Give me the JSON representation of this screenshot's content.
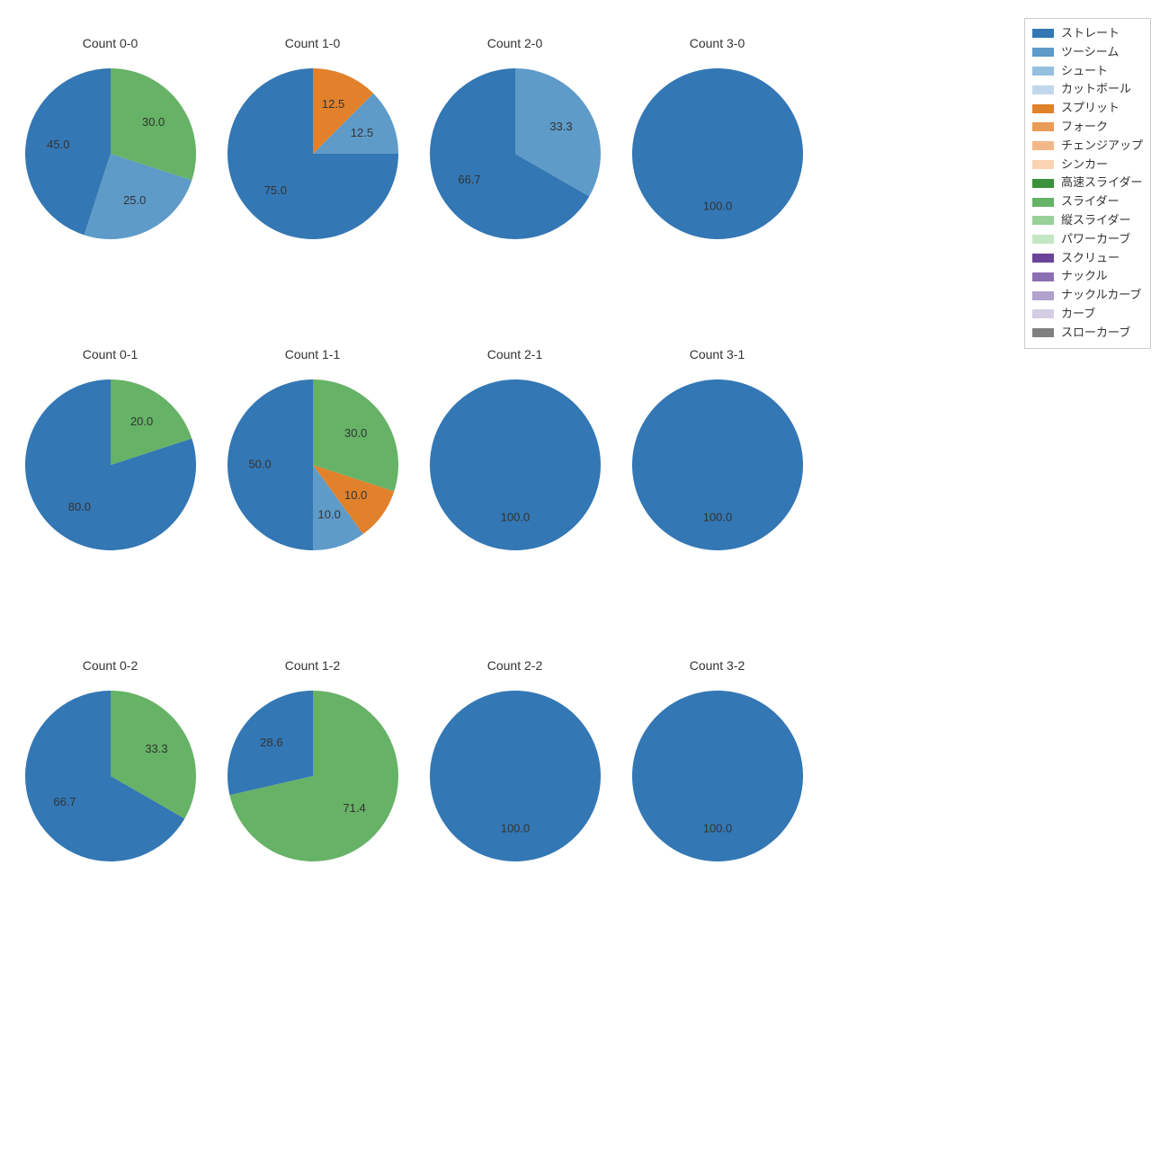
{
  "background_color": "#ffffff",
  "title_fontsize": 14,
  "label_fontsize": 13,
  "text_color": "#333333",
  "pie_radius": 95,
  "pitch_types": [
    {
      "key": "straight",
      "label": "ストレート",
      "color": "#3377b4"
    },
    {
      "key": "twoseam",
      "label": "ツーシーム",
      "color": "#5e9bc9"
    },
    {
      "key": "shoot",
      "label": "シュート",
      "color": "#94c0de"
    },
    {
      "key": "cutball",
      "label": "カットボール",
      "color": "#c1d8ec"
    },
    {
      "key": "split",
      "label": "スプリット",
      "color": "#e1812c"
    },
    {
      "key": "fork",
      "label": "フォーク",
      "color": "#ea9b57"
    },
    {
      "key": "changeup",
      "label": "チェンジアップ",
      "color": "#f3b889"
    },
    {
      "key": "sinker",
      "label": "シンカー",
      "color": "#fad3b3"
    },
    {
      "key": "fast_slider",
      "label": "高速スライダー",
      "color": "#3a923a"
    },
    {
      "key": "slider",
      "label": "スライダー",
      "color": "#66b266"
    },
    {
      "key": "v_slider",
      "label": "縦スライダー",
      "color": "#98d098"
    },
    {
      "key": "power_curve",
      "label": "パワーカーブ",
      "color": "#c3e6c3"
    },
    {
      "key": "screw",
      "label": "スクリュー",
      "color": "#6b4398"
    },
    {
      "key": "knuckle",
      "label": "ナックル",
      "color": "#8a70b2"
    },
    {
      "key": "knuckle_curve",
      "label": "ナックルカーブ",
      "color": "#b0a1cd"
    },
    {
      "key": "curve",
      "label": "カーブ",
      "color": "#d4cde4"
    },
    {
      "key": "slow_curve",
      "label": "スローカーブ",
      "color": "#7f7f7f"
    }
  ],
  "charts": [
    {
      "title": "Count 0-0",
      "slices": [
        {
          "type": "straight",
          "value": 45.0
        },
        {
          "type": "twoseam",
          "value": 25.0
        },
        {
          "type": "slider",
          "value": 30.0
        }
      ]
    },
    {
      "title": "Count 1-0",
      "slices": [
        {
          "type": "straight",
          "value": 75.0
        },
        {
          "type": "twoseam",
          "value": 12.5
        },
        {
          "type": "split",
          "value": 12.5
        }
      ]
    },
    {
      "title": "Count 2-0",
      "slices": [
        {
          "type": "straight",
          "value": 66.7
        },
        {
          "type": "twoseam",
          "value": 33.3
        }
      ]
    },
    {
      "title": "Count 3-0",
      "slices": [
        {
          "type": "straight",
          "value": 100.0
        }
      ]
    },
    {
      "title": "Count 0-1",
      "slices": [
        {
          "type": "straight",
          "value": 80.0
        },
        {
          "type": "slider",
          "value": 20.0
        }
      ]
    },
    {
      "title": "Count 1-1",
      "slices": [
        {
          "type": "straight",
          "value": 50.0
        },
        {
          "type": "twoseam",
          "value": 10.0
        },
        {
          "type": "split",
          "value": 10.0
        },
        {
          "type": "slider",
          "value": 30.0
        }
      ]
    },
    {
      "title": "Count 2-1",
      "slices": [
        {
          "type": "straight",
          "value": 100.0
        }
      ]
    },
    {
      "title": "Count 3-1",
      "slices": [
        {
          "type": "straight",
          "value": 100.0
        }
      ]
    },
    {
      "title": "Count 0-2",
      "slices": [
        {
          "type": "straight",
          "value": 66.7
        },
        {
          "type": "slider",
          "value": 33.3
        }
      ]
    },
    {
      "title": "Count 1-2",
      "slices": [
        {
          "type": "straight",
          "value": 28.6
        },
        {
          "type": "slider",
          "value": 71.4
        }
      ]
    },
    {
      "title": "Count 2-2",
      "slices": [
        {
          "type": "straight",
          "value": 100.0
        }
      ]
    },
    {
      "title": "Count 3-2",
      "slices": [
        {
          "type": "straight",
          "value": 100.0
        }
      ]
    }
  ],
  "legend": {
    "border_color": "#cccccc",
    "fontsize": 13
  }
}
